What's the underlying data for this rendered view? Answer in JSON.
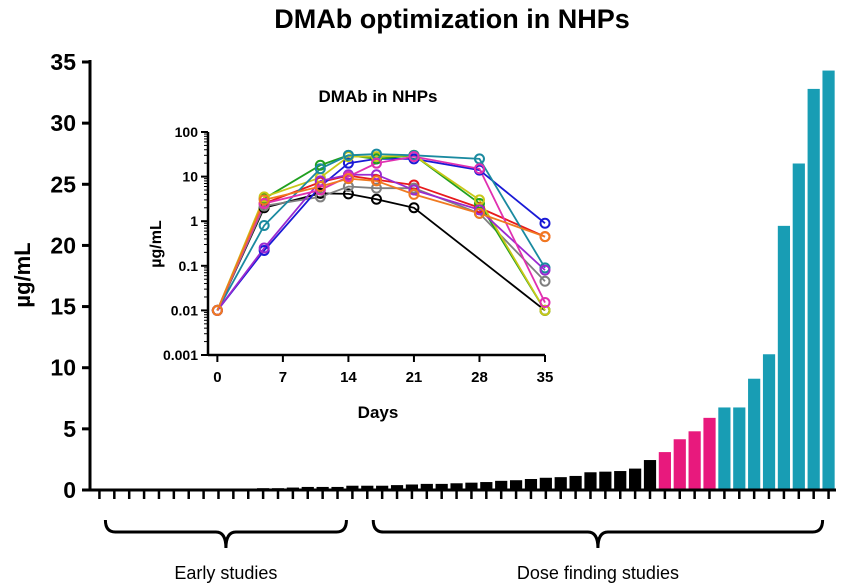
{
  "chart_data": [
    {
      "type": "bar",
      "title": "DMAb optimization in NHPs",
      "xlabel": "",
      "ylabel": "µg/mL",
      "ylim": [
        0,
        35
      ],
      "yticks": [
        "0",
        "5",
        "10",
        "15",
        "20",
        "25",
        "30",
        "35"
      ],
      "grid": false,
      "colors": {
        "early": "#000000",
        "mid": "#e8197d",
        "dose": "#189db4"
      },
      "values": [
        0,
        0,
        0,
        0,
        0,
        0,
        0,
        0.05,
        0.08,
        0.1,
        0.12,
        0.15,
        0.15,
        0.2,
        0.25,
        0.25,
        0.25,
        0.35,
        0.35,
        0.35,
        0.4,
        0.45,
        0.5,
        0.5,
        0.55,
        0.6,
        0.65,
        0.75,
        0.8,
        0.9,
        1.0,
        1.05,
        1.15,
        1.45,
        1.5,
        1.55,
        1.75,
        2.45,
        3.1,
        4.15,
        4.8,
        5.9,
        6.75,
        6.75,
        9.1,
        11.1,
        21.6,
        26.7,
        32.8,
        34.3
      ],
      "bar_colors": [
        "early",
        "early",
        "early",
        "early",
        "early",
        "early",
        "early",
        "early",
        "early",
        "early",
        "early",
        "early",
        "early",
        "early",
        "early",
        "early",
        "early",
        "early",
        "early",
        "early",
        "early",
        "early",
        "early",
        "early",
        "early",
        "early",
        "early",
        "early",
        "early",
        "early",
        "early",
        "early",
        "early",
        "early",
        "early",
        "early",
        "early",
        "early",
        "mid",
        "mid",
        "mid",
        "mid",
        "dose",
        "dose",
        "dose",
        "dose",
        "dose",
        "dose",
        "dose",
        "dose"
      ],
      "groups": [
        {
          "label": "Early studies",
          "from": 0,
          "to": 17
        },
        {
          "label": "Dose finding studies",
          "from": 18,
          "to": 49
        }
      ]
    },
    {
      "type": "line",
      "title": "DMAb in NHPs",
      "xlabel": "Days",
      "ylabel": "µg/mL",
      "yscale": "log",
      "xlim": [
        -1,
        35
      ],
      "ylim": [
        0.001,
        100
      ],
      "xticks": [
        0,
        7,
        14,
        21,
        28,
        35
      ],
      "yticks": [
        "0.001",
        "0.01",
        "0.1",
        "1",
        "10",
        "100"
      ],
      "x": [
        0,
        5,
        11,
        14,
        17,
        21,
        28,
        35
      ],
      "series": [
        {
          "color": "#000000",
          "values": [
            0.01,
            2.0,
            4.2,
            4.1,
            3.1,
            2.0,
            null,
            0.01
          ]
        },
        {
          "color": "#e8191c",
          "values": [
            0.01,
            2.5,
            7.5,
            10.5,
            8.5,
            6.5,
            2.0,
            0.45
          ]
        },
        {
          "color": "#7f7f7f",
          "values": [
            0.01,
            2.2,
            3.5,
            6.0,
            5.5,
            5.5,
            1.5,
            0.045
          ]
        },
        {
          "color": "#1a1ad6",
          "values": [
            0.01,
            0.22,
            6.0,
            20.0,
            25.0,
            25.0,
            14.0,
            0.9
          ]
        },
        {
          "color": "#20a020",
          "values": [
            0.01,
            3.2,
            18.0,
            30.0,
            25.0,
            30.0,
            2.5,
            0.01
          ]
        },
        {
          "color": "#c8c818",
          "values": [
            0.01,
            3.5,
            9.5,
            28.0,
            28.0,
            30.0,
            3.0,
            0.01
          ]
        },
        {
          "color": "#1a8aa0",
          "values": [
            0.01,
            0.8,
            15.0,
            30.0,
            32.0,
            30.0,
            25.0,
            0.09
          ]
        },
        {
          "color": "#9a2ad0",
          "values": [
            0.01,
            0.25,
            8.0,
            11.0,
            11.0,
            5.0,
            1.8,
            0.08
          ]
        },
        {
          "color": "#e030b0",
          "values": [
            0.01,
            2.5,
            5.0,
            10.0,
            20.0,
            28.0,
            15.0,
            0.015
          ]
        },
        {
          "color": "#f07a20",
          "values": [
            0.01,
            3.0,
            6.0,
            9.0,
            8.0,
            4.0,
            1.5,
            0.45
          ]
        }
      ]
    }
  ]
}
